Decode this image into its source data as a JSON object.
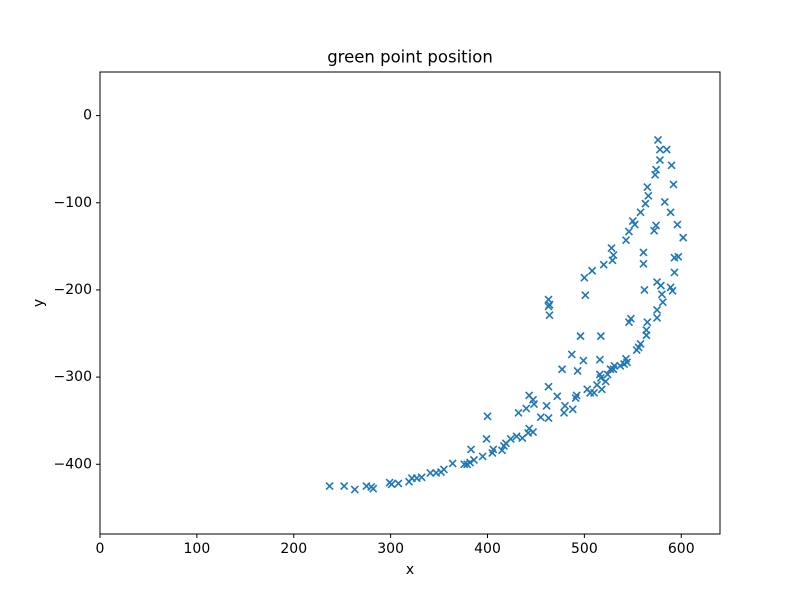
{
  "chart_data": {
    "type": "scatter",
    "title": "green point position",
    "xlabel": "x",
    "ylabel": "y",
    "color": "#1f77b4",
    "marker": "x",
    "x": [
      237,
      252,
      263,
      275,
      280,
      282,
      299,
      301,
      308,
      319,
      322,
      327,
      332,
      341,
      347,
      352,
      355,
      364,
      376,
      379,
      382,
      386,
      383,
      395,
      399,
      400,
      405,
      406,
      415,
      417,
      419,
      424,
      430,
      436,
      432,
      442,
      440,
      443,
      443,
      447,
      448,
      447,
      455,
      461,
      463,
      463,
      463,
      464,
      464,
      463,
      472,
      477,
      479,
      480,
      488,
      487,
      492,
      491,
      496,
      493,
      499,
      500,
      501,
      503,
      506,
      508,
      510,
      513,
      517,
      516,
      516,
      518,
      517,
      522,
      520,
      524,
      527,
      529,
      530,
      528,
      531,
      530,
      537,
      541,
      543,
      544,
      543,
      546,
      546,
      548,
      550,
      552,
      554,
      556,
      558,
      558,
      562,
      561,
      561,
      563,
      564,
      564,
      565,
      565,
      566,
      572,
      573,
      574,
      574,
      575,
      575,
      575,
      576,
      578,
      578,
      579,
      580,
      581,
      583,
      585,
      589,
      589,
      590,
      591,
      592,
      593,
      593,
      596,
      597,
      602
    ],
    "values": [
      -425,
      -425,
      -429,
      -425,
      -426,
      -428,
      -421,
      -423,
      -422,
      -420,
      -416,
      -416,
      -415,
      -410,
      -410,
      -409,
      -406,
      -399,
      -400,
      -400,
      -398,
      -395,
      -383,
      -391,
      -371,
      -345,
      -387,
      -383,
      -384,
      -379,
      -376,
      -371,
      -368,
      -370,
      -341,
      -364,
      -336,
      -321,
      -359,
      -363,
      -331,
      -326,
      -346,
      -333,
      -347,
      -311,
      -211,
      -217,
      -229,
      -219,
      -322,
      -291,
      -341,
      -333,
      -337,
      -274,
      -321,
      -324,
      -253,
      -293,
      -281,
      -186,
      -206,
      -314,
      -318,
      -178,
      -318,
      -309,
      -253,
      -280,
      -297,
      -314,
      -301,
      -305,
      -171,
      -297,
      -291,
      -166,
      -160,
      -152,
      -287,
      -291,
      -287,
      -285,
      -279,
      -283,
      -143,
      -133,
      -237,
      -233,
      -121,
      -125,
      -269,
      -266,
      -111,
      -262,
      -200,
      -157,
      -170,
      -101,
      -252,
      -246,
      -237,
      -82,
      -92,
      -132,
      -68,
      -126,
      -62,
      -232,
      -223,
      -191,
      -28,
      -39,
      -51,
      -195,
      -205,
      -214,
      -99,
      -39,
      -111,
      -197,
      -57,
      -201,
      -79,
      -163,
      -180,
      -125,
      -162,
      -140
    ],
    "xlim": [
      0,
      640
    ],
    "ylim": [
      -480,
      50
    ],
    "xticks": [
      0,
      100,
      200,
      300,
      400,
      500,
      600
    ],
    "yticks": [
      {
        "value": -400,
        "label": "−400"
      },
      {
        "value": -300,
        "label": "−300"
      },
      {
        "value": -200,
        "label": "−200"
      },
      {
        "value": -100,
        "label": "−100"
      },
      0
    ]
  }
}
